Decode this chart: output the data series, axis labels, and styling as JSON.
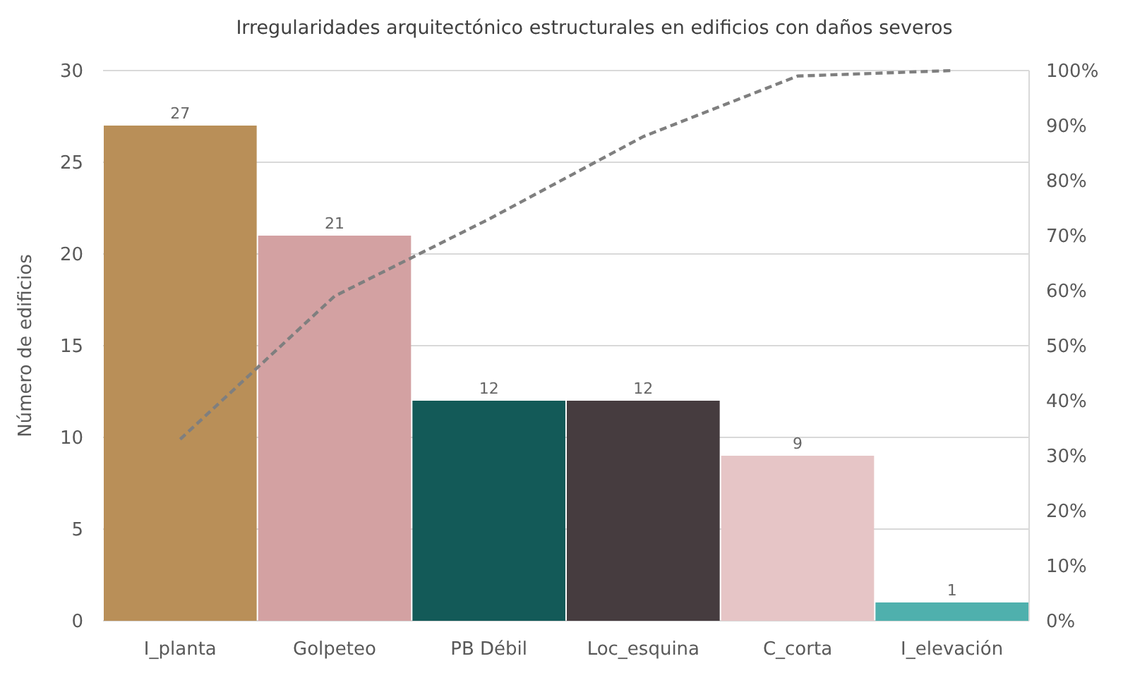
{
  "chart_data": {
    "type": "bar",
    "title": "Irregularidades arquitectónico estructurales en edificios con daños severos",
    "ylabel": "Número de edificios",
    "categories": [
      "I_planta",
      "Golpeteo",
      "PB Débil",
      "Loc_esquina",
      "C_corta",
      "I_elevación"
    ],
    "series": [
      {
        "colors": [
          "#b98f58",
          "#d3a1a2",
          "#135a58",
          "#463c3f",
          "#e6c5c6",
          "#4fb0ad"
        ],
        "values": [
          27,
          21,
          12,
          12,
          9,
          1
        ],
        "value_labels": [
          "27",
          "21",
          "12",
          "12",
          "9",
          "1"
        ]
      },
      {
        "type": "line",
        "axis": "y2",
        "color": "#7f7f7f",
        "line_style": "dashed",
        "marker": "none",
        "values": [
          33,
          59,
          73,
          88,
          99,
          100
        ]
      }
    ],
    "ylim": [
      0,
      30
    ],
    "yticks": [
      0,
      5,
      10,
      15,
      20,
      25,
      30
    ],
    "y2lim": [
      0,
      100
    ],
    "y2ticks": [
      {
        "value": 0,
        "label": "0%"
      },
      {
        "value": 10,
        "label": "10%"
      },
      {
        "value": 20,
        "label": "20%"
      },
      {
        "value": 30,
        "label": "30%"
      },
      {
        "value": 40,
        "label": "40%"
      },
      {
        "value": 50,
        "label": "50%"
      },
      {
        "value": 60,
        "label": "60%"
      },
      {
        "value": 70,
        "label": "70%"
      },
      {
        "value": 80,
        "label": "80%"
      },
      {
        "value": 90,
        "label": "90%"
      },
      {
        "value": 100,
        "label": "100%"
      }
    ],
    "grid": "y"
  }
}
